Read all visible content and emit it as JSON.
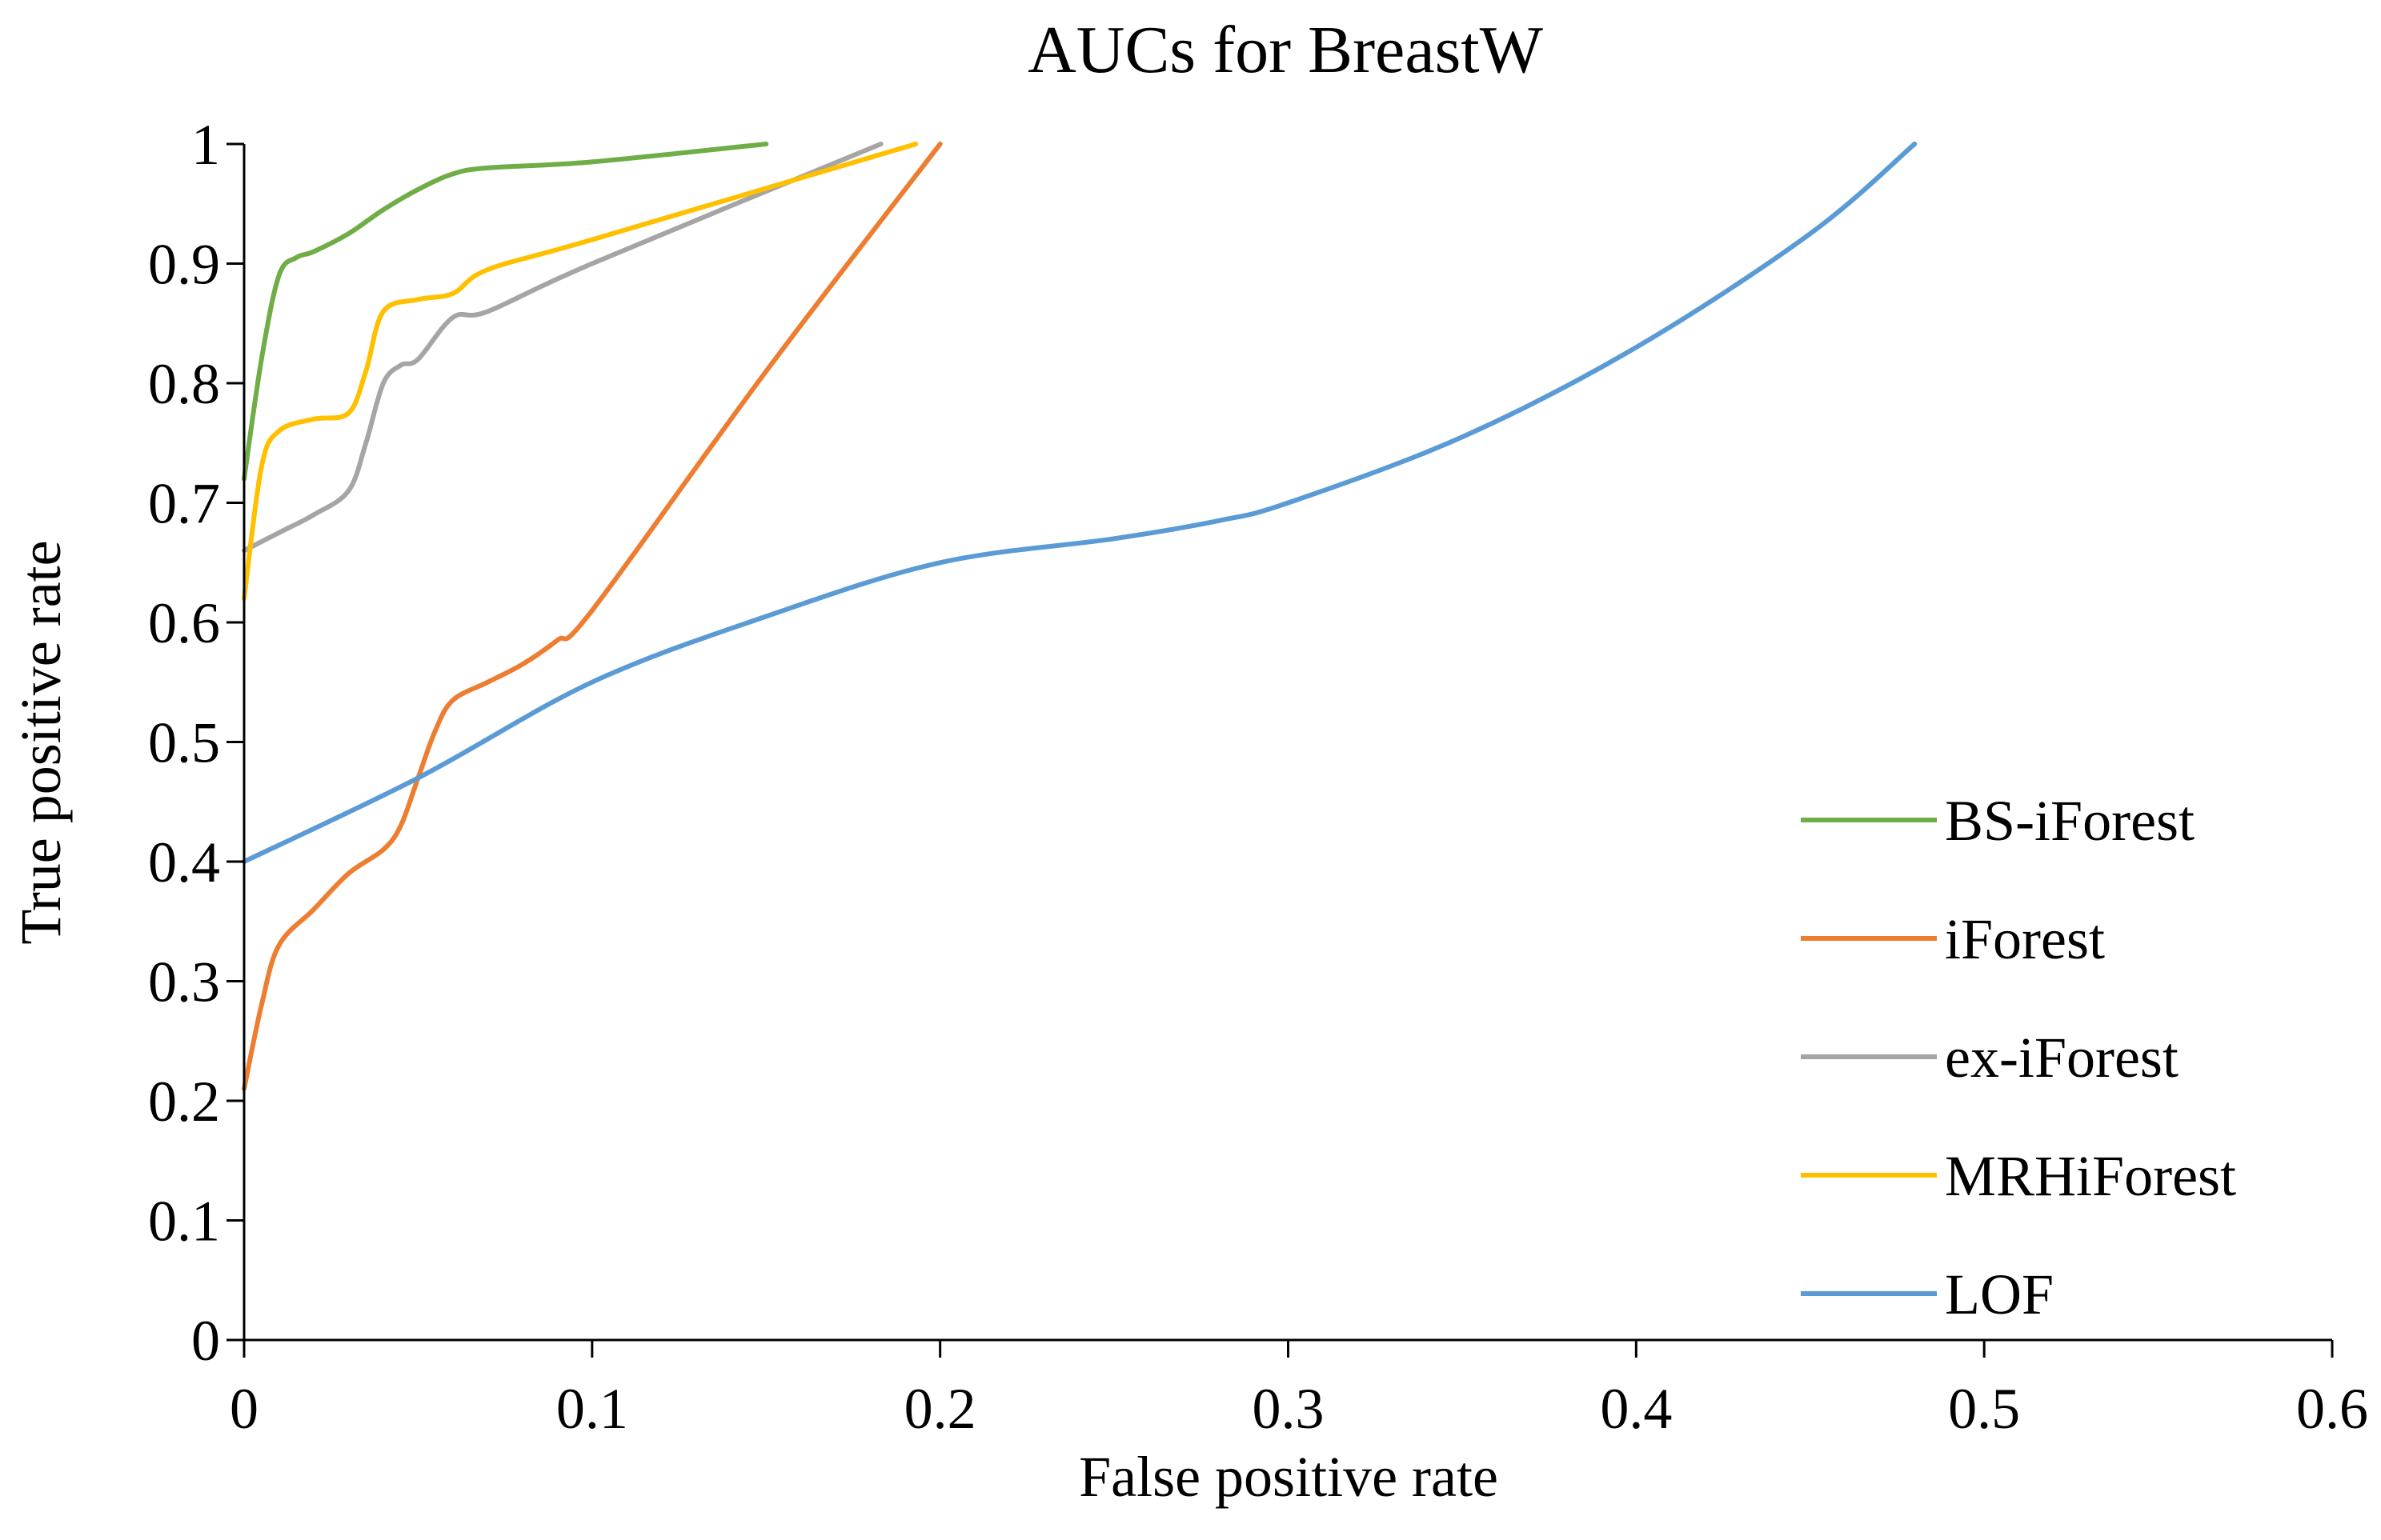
{
  "chart_data": {
    "type": "line",
    "title": "AUCs for BreastW",
    "xlabel": "False positive rate",
    "ylabel": "True positive rate",
    "xlim": [
      0,
      0.6
    ],
    "ylim": [
      0,
      1
    ],
    "xticks": [
      "0",
      "0.1",
      "0.2",
      "0.3",
      "0.4",
      "0.5",
      "0.6"
    ],
    "yticks": [
      "0",
      "0.1",
      "0.2",
      "0.3",
      "0.4",
      "0.5",
      "0.6",
      "0.7",
      "0.8",
      "0.9",
      "1"
    ],
    "legend_position": "right",
    "series": [
      {
        "name": "BS-iForest",
        "color": "#70AD47",
        "points": [
          [
            0,
            0.72
          ],
          [
            0.005,
            0.82
          ],
          [
            0.01,
            0.89
          ],
          [
            0.015,
            0.905
          ],
          [
            0.02,
            0.91
          ],
          [
            0.03,
            0.925
          ],
          [
            0.04,
            0.945
          ],
          [
            0.05,
            0.962
          ],
          [
            0.06,
            0.975
          ],
          [
            0.07,
            0.98
          ],
          [
            0.1,
            0.985
          ],
          [
            0.15,
            1.0
          ]
        ]
      },
      {
        "name": "iForest",
        "color": "#ED7D31",
        "points": [
          [
            0,
            0.21
          ],
          [
            0.005,
            0.28
          ],
          [
            0.01,
            0.33
          ],
          [
            0.02,
            0.36
          ],
          [
            0.03,
            0.39
          ],
          [
            0.04,
            0.41
          ],
          [
            0.045,
            0.43
          ],
          [
            0.05,
            0.47
          ],
          [
            0.055,
            0.51
          ],
          [
            0.06,
            0.535
          ],
          [
            0.07,
            0.55
          ],
          [
            0.08,
            0.565
          ],
          [
            0.09,
            0.585
          ],
          [
            0.1,
            0.61
          ],
          [
            0.15,
            0.81
          ],
          [
            0.2,
            1.0
          ]
        ]
      },
      {
        "name": "ex-iForest",
        "color": "#A5A5A5",
        "points": [
          [
            0,
            0.66
          ],
          [
            0.01,
            0.675
          ],
          [
            0.02,
            0.69
          ],
          [
            0.03,
            0.71
          ],
          [
            0.035,
            0.75
          ],
          [
            0.04,
            0.8
          ],
          [
            0.045,
            0.815
          ],
          [
            0.05,
            0.82
          ],
          [
            0.06,
            0.855
          ],
          [
            0.07,
            0.86
          ],
          [
            0.1,
            0.9
          ],
          [
            0.183,
            1.0
          ]
        ]
      },
      {
        "name": "MRHiForest",
        "color": "#FFC000",
        "points": [
          [
            0,
            0.62
          ],
          [
            0.005,
            0.73
          ],
          [
            0.01,
            0.76
          ],
          [
            0.02,
            0.77
          ],
          [
            0.03,
            0.775
          ],
          [
            0.035,
            0.81
          ],
          [
            0.04,
            0.86
          ],
          [
            0.05,
            0.87
          ],
          [
            0.06,
            0.875
          ],
          [
            0.07,
            0.895
          ],
          [
            0.1,
            0.92
          ],
          [
            0.193,
            1.0
          ]
        ]
      },
      {
        "name": "LOF",
        "color": "#5B9BD5",
        "points": [
          [
            0,
            0.4
          ],
          [
            0.05,
            0.47
          ],
          [
            0.1,
            0.55
          ],
          [
            0.15,
            0.605
          ],
          [
            0.2,
            0.65
          ],
          [
            0.25,
            0.67
          ],
          [
            0.28,
            0.685
          ],
          [
            0.3,
            0.7
          ],
          [
            0.35,
            0.755
          ],
          [
            0.4,
            0.83
          ],
          [
            0.45,
            0.925
          ],
          [
            0.48,
            1.0
          ]
        ]
      }
    ]
  }
}
